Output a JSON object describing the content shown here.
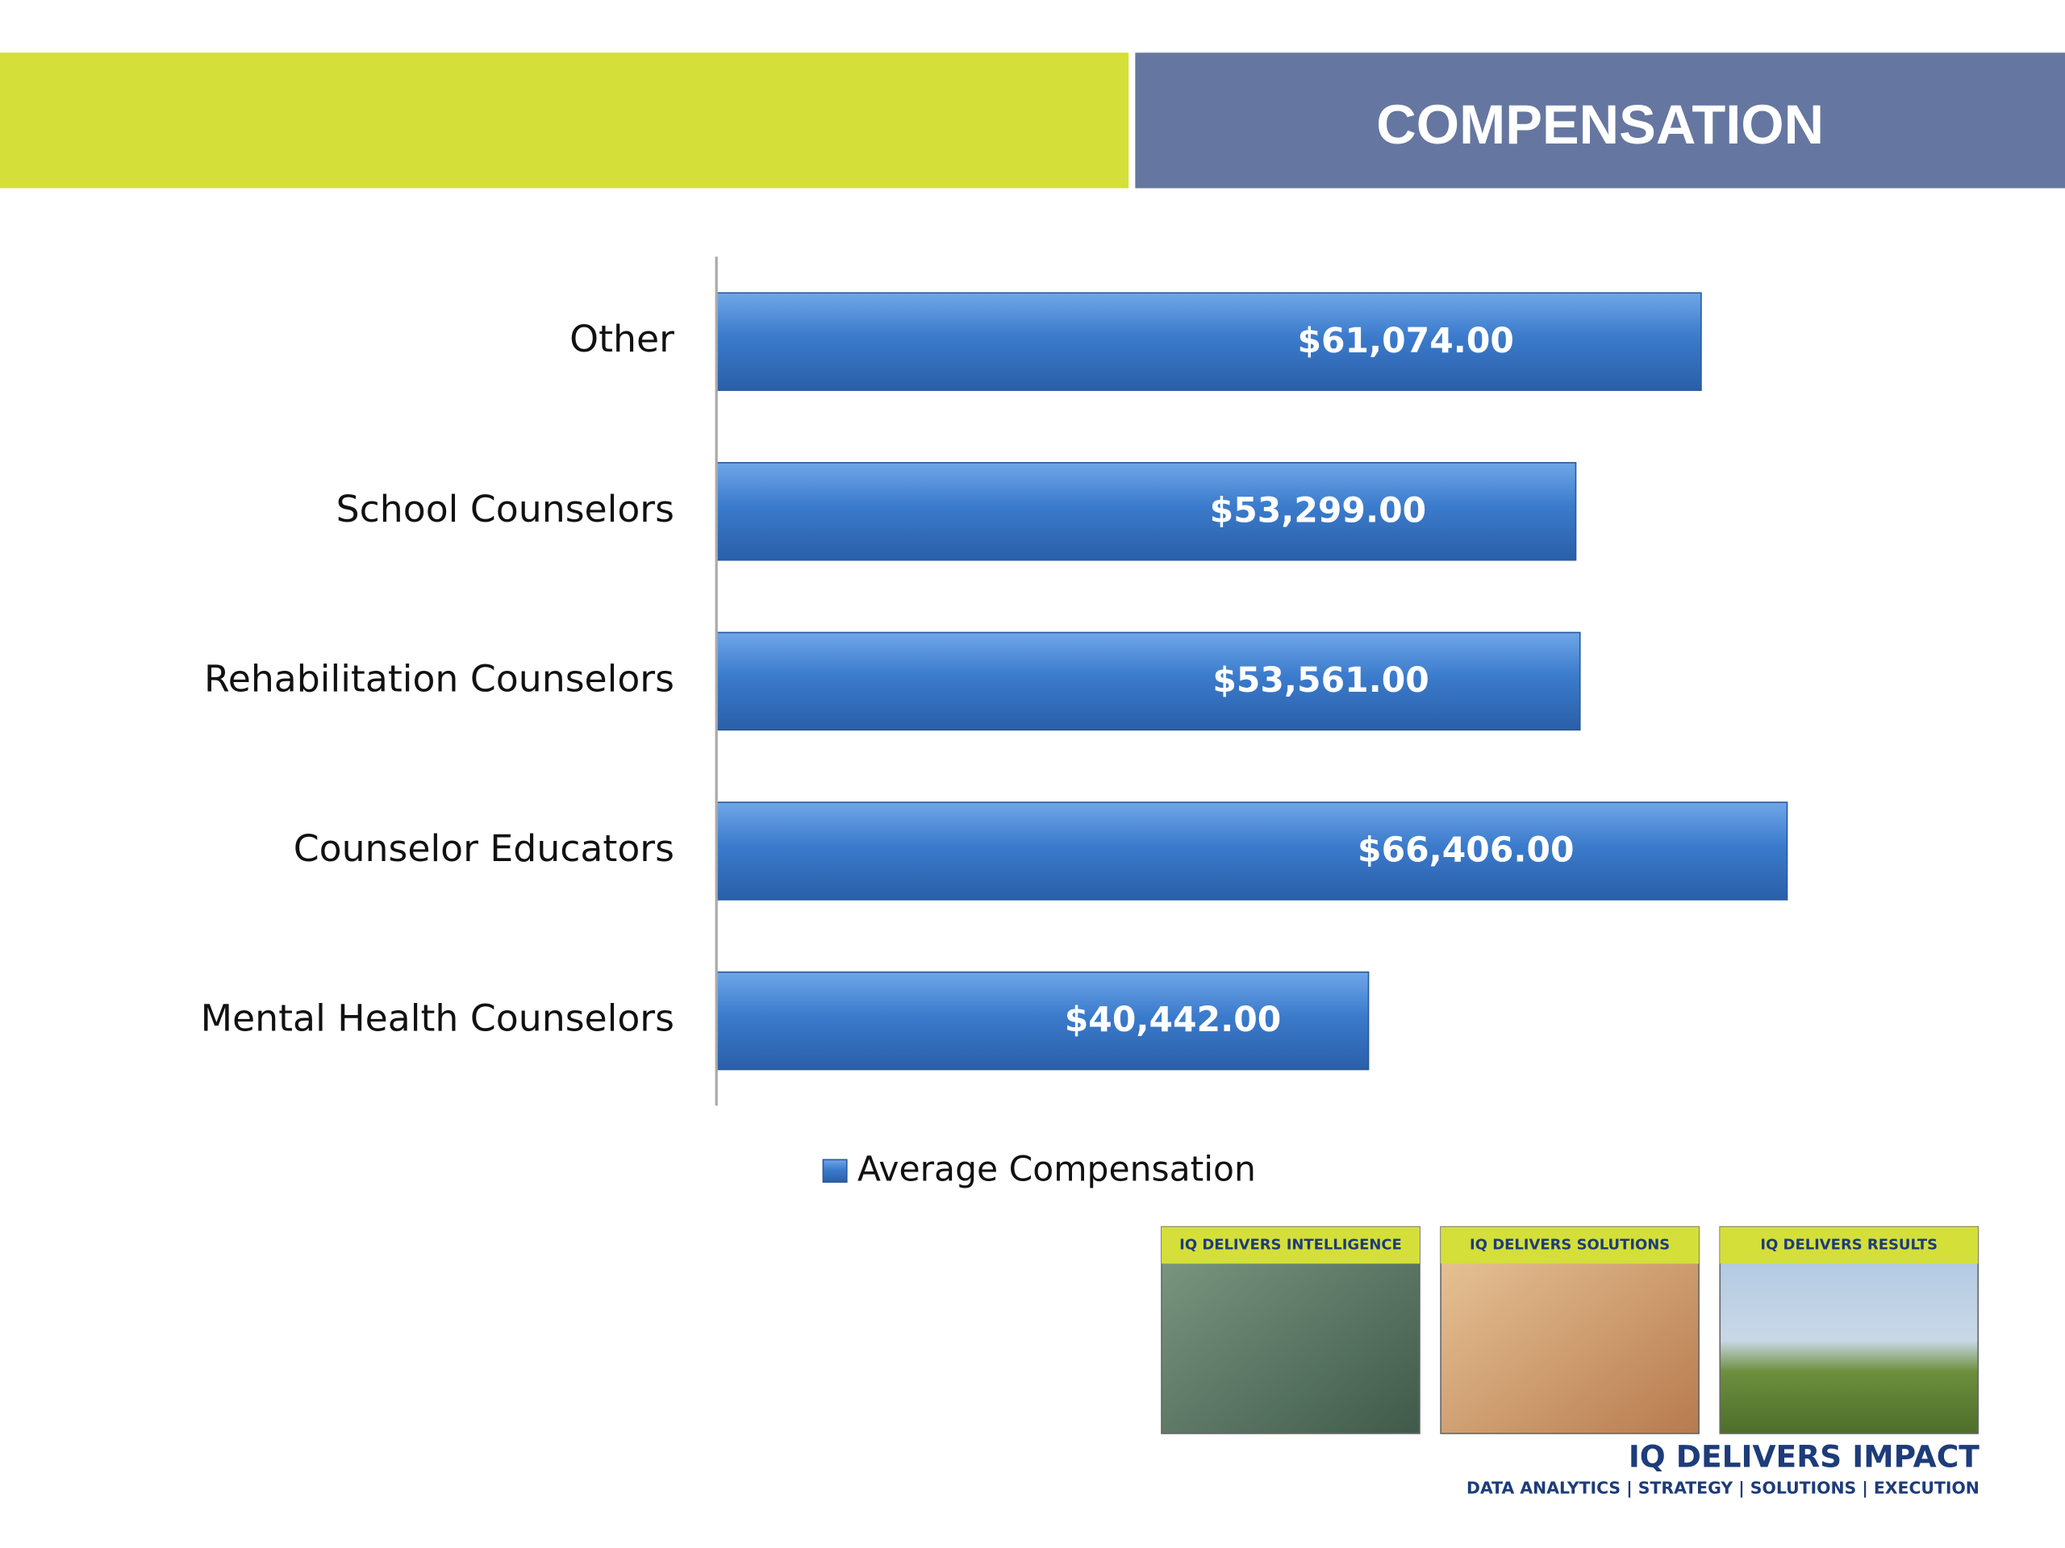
{
  "header": {
    "title": "COMPENSATION"
  },
  "chart_data": {
    "type": "bar",
    "orientation": "horizontal",
    "categories": [
      "Other",
      "School Counselors",
      "Rehabilitation Counselors",
      "Counselor Educators",
      "Mental Health Counselors"
    ],
    "series": [
      {
        "name": "Average Compensation",
        "color": "#3b7bcc",
        "values": [
          61074,
          53299,
          53561,
          66406,
          40442
        ],
        "value_labels": [
          "$61,074.00",
          "$53,299.00",
          "$53,561.00",
          "$66,406.00",
          "$40,442.00"
        ]
      }
    ],
    "xlim": [
      0,
      70000
    ],
    "legend": "bottom"
  },
  "footer": {
    "tiles": [
      "IQ DELIVERS INTELLIGENCE",
      "IQ DELIVERS SOLUTIONS",
      "IQ DELIVERS RESULTS"
    ],
    "brand": "IQ DELIVERS IMPACT",
    "tagline": "DATA ANALYTICS | STRATEGY | SOLUTIONS | EXECUTION"
  }
}
